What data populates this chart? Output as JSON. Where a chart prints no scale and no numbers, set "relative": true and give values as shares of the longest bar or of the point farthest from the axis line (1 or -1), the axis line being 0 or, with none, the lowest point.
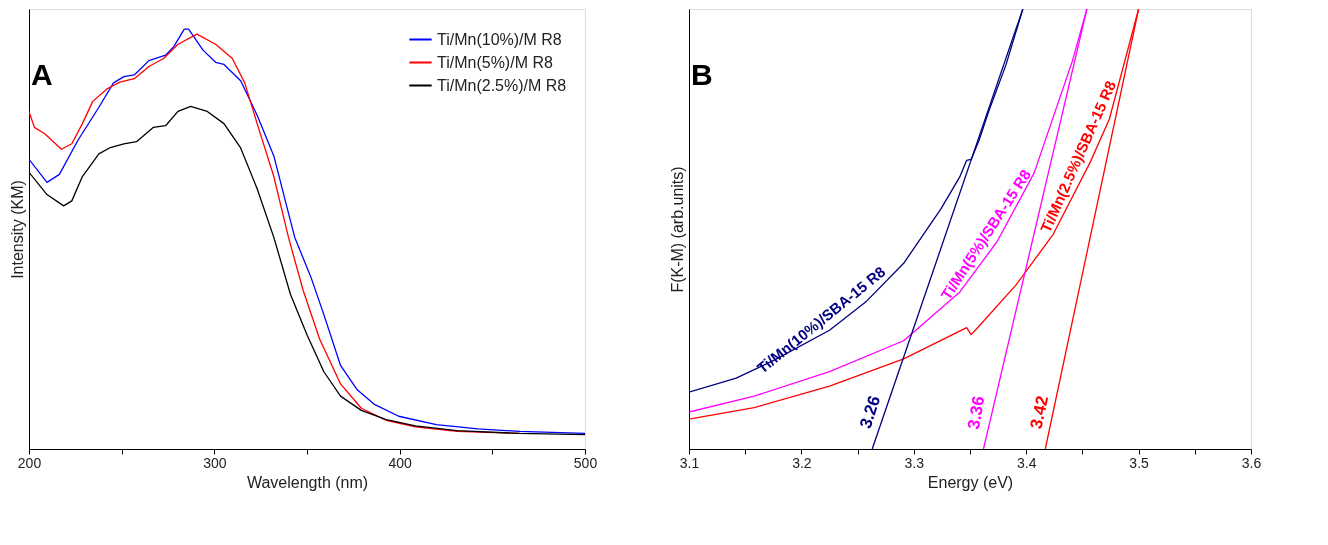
{
  "chart_data": [
    {
      "type": "line",
      "title": "A",
      "xlabel": "Wavelength (nm)",
      "ylabel": "Intensity (KM)",
      "relative": true,
      "xlim": [
        200,
        500
      ],
      "xticks": [
        200,
        {
          "value": 250,
          "label": null
        },
        300,
        {
          "value": 350,
          "label": null
        },
        400,
        {
          "value": 450,
          "label": null
        },
        500
      ],
      "grid": false,
      "legend": "top right",
      "series": [
        {
          "name": "Ti/Mn(10%)/M R8",
          "color": "#0000ff",
          "x": [
            200,
            209.7,
            216.4,
            226.5,
            237.7,
            245.6,
            251.2,
            256.8,
            264.7,
            273.7,
            278.2,
            283.8,
            286.1,
            293.9,
            300.7,
            305.2,
            314.2,
            323.1,
            332.1,
            340,
            343.4,
            352.3,
            359.1,
            368.1,
            377.1,
            386.1,
            399.5,
            419.8,
            442.2,
            464.7,
            500
          ],
          "values": [
            0.69,
            0.635,
            0.654,
            0.736,
            0.814,
            0.872,
            0.887,
            0.891,
            0.925,
            0.938,
            0.959,
            1,
            1,
            0.95,
            0.921,
            0.916,
            0.877,
            0.795,
            0.698,
            0.562,
            0.504,
            0.407,
            0.32,
            0.199,
            0.141,
            0.107,
            0.078,
            0.058,
            0.048,
            0.042,
            0.037
          ]
        },
        {
          "name": "Ti/Mn(5%)/M R8",
          "color": "#ff0000",
          "x": [
            200,
            202.9,
            208.5,
            217.5,
            223.1,
            228.8,
            234.4,
            242.2,
            249,
            256.8,
            264.7,
            272.6,
            280.4,
            290.6,
            300.7,
            309.7,
            316.4,
            323.1,
            332.1,
            340,
            347.9,
            356.8,
            368.1,
            379.3,
            392.8,
            408.5,
            431,
            464.7
          ],
          "values": [
            0.804,
            0.766,
            0.751,
            0.714,
            0.727,
            0.775,
            0.828,
            0.858,
            0.874,
            0.882,
            0.911,
            0.93,
            0.964,
            0.988,
            0.964,
            0.93,
            0.872,
            0.775,
            0.649,
            0.504,
            0.378,
            0.262,
            0.155,
            0.097,
            0.068,
            0.053,
            0.042,
            0.037
          ]
        },
        {
          "name": "Ti/Mn(2.5%)/M R8",
          "color": "#000000",
          "x": [
            200,
            209.7,
            218.7,
            223.1,
            228.8,
            237.7,
            243.4,
            251.2,
            258,
            267,
            273.7,
            280.4,
            287.2,
            296.2,
            305.2,
            314.2,
            323.1,
            332.1,
            341.1,
            350.1,
            359.1,
            368.1,
            379.3,
            392.8,
            408.5,
            431,
            464.7,
            500
          ],
          "values": [
            0.659,
            0.606,
            0.579,
            0.591,
            0.649,
            0.703,
            0.717,
            0.727,
            0.732,
            0.766,
            0.77,
            0.804,
            0.816,
            0.804,
            0.775,
            0.717,
            0.62,
            0.504,
            0.368,
            0.271,
            0.184,
            0.126,
            0.092,
            0.07,
            0.055,
            0.044,
            0.037,
            0.034
          ]
        }
      ]
    },
    {
      "type": "line",
      "title": "B",
      "xlabel": "Energy (eV)",
      "ylabel": "F(K-M) (arb.units)",
      "relative": true,
      "xlim": [
        3.1,
        3.6
      ],
      "xticks": [
        3.1,
        {
          "value": 3.15,
          "label": null
        },
        3.2,
        {
          "value": 3.25,
          "label": null
        },
        3.3,
        {
          "value": 3.35,
          "label": null
        },
        3.4,
        {
          "value": 3.45,
          "label": null
        },
        3.5,
        {
          "value": 3.55,
          "label": null
        },
        3.6
      ],
      "grid": false,
      "legend": false,
      "series": [
        {
          "name": "Ti/Mn(10%)/SBA-15 R8",
          "color": "#000080",
          "x": [
            3.1,
            3.142,
            3.175,
            3.225,
            3.258,
            3.291,
            3.324,
            3.341,
            3.347,
            3.351,
            3.358,
            3.367,
            3.382,
            3.397
          ],
          "values": [
            0.129,
            0.161,
            0.201,
            0.27,
            0.336,
            0.422,
            0.545,
            0.619,
            0.656,
            0.658,
            0.701,
            0.77,
            0.873,
            1
          ]
        },
        {
          "name": "Ti/Mn(5%)/SBA-15 R8",
          "color": "#ff00ff",
          "x": [
            3.1,
            3.158,
            3.225,
            3.291,
            3.341,
            3.374,
            3.407,
            3.441,
            3.454
          ],
          "values": [
            0.084,
            0.12,
            0.176,
            0.246,
            0.357,
            0.471,
            0.627,
            0.881,
            1
          ]
        },
        {
          "name": "Ti/Mn(2.5%)/SBA-15 R8",
          "color": "#ff0000",
          "x": [
            3.1,
            3.158,
            3.225,
            3.291,
            3.347,
            3.351,
            3.358,
            3.391,
            3.424,
            3.457,
            3.474,
            3.5
          ],
          "values": [
            0.068,
            0.094,
            0.143,
            0.205,
            0.276,
            0.26,
            0.279,
            0.373,
            0.488,
            0.652,
            0.75,
            1
          ]
        },
        {
          "type": "line",
          "color": "#000080",
          "x": [
            3.263,
            3.397
          ],
          "values": [
            0,
            1
          ]
        },
        {
          "type": "line",
          "color": "#ff00ff",
          "x": [
            3.362,
            3.454
          ],
          "values": [
            0,
            1
          ]
        },
        {
          "type": "line",
          "color": "#ff0000",
          "x": [
            3.417,
            3.5
          ],
          "values": [
            0,
            1
          ]
        }
      ],
      "annotations": [
        {
          "text": "3.26",
          "x": 3.263,
          "y": 0
        },
        {
          "text": "3.36",
          "x": 3.362,
          "y": 0
        },
        {
          "text": "3.42",
          "x": 3.417,
          "y": 0
        }
      ]
    }
  ]
}
